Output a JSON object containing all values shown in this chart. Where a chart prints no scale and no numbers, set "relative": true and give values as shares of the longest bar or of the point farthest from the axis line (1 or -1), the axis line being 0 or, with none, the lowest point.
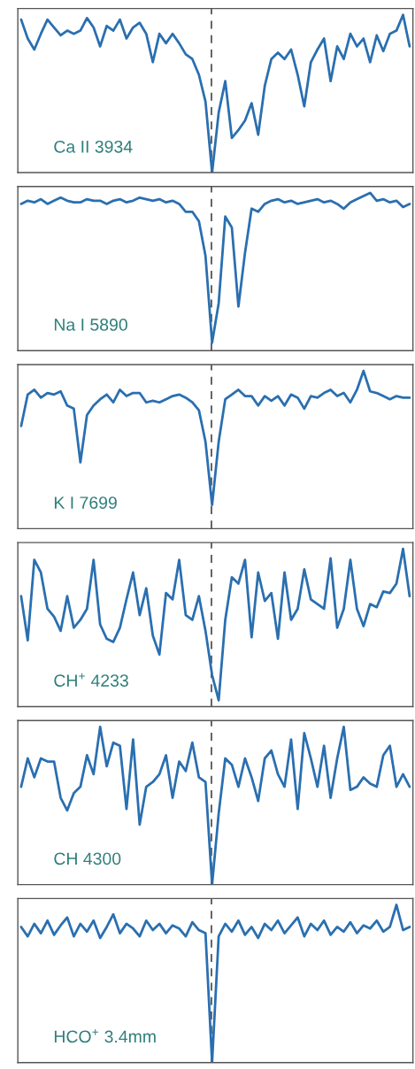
{
  "chart_data": [
    {
      "type": "line",
      "relative": true,
      "categories": [
        null,
        null,
        null,
        null,
        null,
        null,
        null,
        null,
        null,
        null,
        null,
        null,
        null,
        null,
        null,
        null,
        null,
        null,
        null,
        null,
        null,
        null,
        null,
        null,
        null,
        null,
        null,
        null,
        null,
        null,
        null,
        null,
        null,
        null,
        null,
        null,
        null,
        null,
        null,
        null,
        null,
        null,
        null,
        null,
        null,
        null,
        null,
        null,
        null,
        null,
        null,
        null,
        null,
        null,
        null,
        null,
        null,
        null,
        null,
        null
      ],
      "series": [
        {
          "color": "#2a6fb0",
          "values": [
            0.97,
            0.85,
            0.78,
            0.88,
            0.97,
            0.92,
            0.87,
            0.9,
            0.88,
            0.9,
            0.98,
            0.92,
            0.8,
            0.93,
            0.9,
            0.97,
            0.85,
            0.92,
            0.95,
            0.88,
            0.7,
            0.88,
            0.82,
            0.88,
            0.82,
            0.75,
            0.72,
            0.62,
            0.45,
            0.0,
            0.38,
            0.58,
            0.22,
            0.27,
            0.33,
            0.44,
            0.24,
            0.55,
            0.72,
            0.76,
            0.72,
            0.78,
            0.62,
            0.42,
            0.7,
            0.78,
            0.85,
            0.58,
            0.8,
            0.72,
            0.88,
            0.8,
            0.85,
            0.7,
            0.87,
            0.77,
            0.88,
            0.9,
            1.0,
            0.8
          ]
        }
      ],
      "annotations": [
        "Ca II 3934"
      ]
    },
    {
      "type": "line",
      "relative": true,
      "categories": [
        null,
        null,
        null,
        null,
        null,
        null,
        null,
        null,
        null,
        null,
        null,
        null,
        null,
        null,
        null,
        null,
        null,
        null,
        null,
        null,
        null,
        null,
        null,
        null,
        null,
        null,
        null,
        null,
        null,
        null,
        null,
        null,
        null,
        null,
        null,
        null,
        null,
        null,
        null,
        null,
        null,
        null,
        null,
        null,
        null,
        null,
        null,
        null,
        null,
        null,
        null,
        null,
        null,
        null,
        null,
        null,
        null,
        null,
        null,
        null
      ],
      "series": [
        {
          "color": "#2a6fb0",
          "values": [
            0.93,
            0.95,
            0.94,
            0.96,
            0.93,
            0.95,
            0.97,
            0.95,
            0.94,
            0.94,
            0.96,
            0.95,
            0.95,
            0.93,
            0.95,
            0.96,
            0.94,
            0.95,
            0.97,
            0.96,
            0.95,
            0.96,
            0.94,
            0.95,
            0.93,
            0.88,
            0.88,
            0.82,
            0.6,
            0.05,
            0.3,
            0.85,
            0.78,
            0.28,
            0.62,
            0.9,
            0.88,
            0.93,
            0.95,
            0.96,
            0.94,
            0.95,
            0.93,
            0.94,
            0.95,
            0.96,
            0.94,
            0.95,
            0.93,
            0.9,
            0.94,
            0.96,
            0.98,
            1.0,
            0.95,
            0.96,
            0.94,
            0.95,
            0.91,
            0.93
          ]
        }
      ],
      "annotations": [
        "Na I 5890"
      ]
    },
    {
      "type": "line",
      "relative": true,
      "categories": [
        null,
        null,
        null,
        null,
        null,
        null,
        null,
        null,
        null,
        null,
        null,
        null,
        null,
        null,
        null,
        null,
        null,
        null,
        null,
        null,
        null,
        null,
        null,
        null,
        null,
        null,
        null,
        null,
        null,
        null,
        null,
        null,
        null,
        null,
        null,
        null,
        null,
        null,
        null,
        null,
        null,
        null,
        null,
        null,
        null,
        null,
        null,
        null,
        null,
        null,
        null,
        null,
        null,
        null,
        null,
        null,
        null,
        null,
        null,
        null
      ],
      "series": [
        {
          "color": "#2a6fb0",
          "values": [
            0.65,
            0.85,
            0.88,
            0.83,
            0.86,
            0.85,
            0.87,
            0.78,
            0.76,
            0.42,
            0.72,
            0.78,
            0.82,
            0.85,
            0.8,
            0.88,
            0.84,
            0.86,
            0.86,
            0.8,
            0.81,
            0.8,
            0.82,
            0.84,
            0.85,
            0.83,
            0.8,
            0.75,
            0.55,
            0.15,
            0.55,
            0.82,
            0.85,
            0.88,
            0.84,
            0.84,
            0.78,
            0.84,
            0.81,
            0.84,
            0.78,
            0.85,
            0.83,
            0.76,
            0.84,
            0.83,
            0.86,
            0.88,
            0.84,
            0.86,
            0.8,
            0.88,
            1.0,
            0.87,
            0.86,
            0.84,
            0.82,
            0.84,
            0.83,
            0.83
          ]
        }
      ],
      "annotations": [
        "K I 7699"
      ]
    },
    {
      "type": "line",
      "relative": true,
      "categories": [
        null,
        null,
        null,
        null,
        null,
        null,
        null,
        null,
        null,
        null,
        null,
        null,
        null,
        null,
        null,
        null,
        null,
        null,
        null,
        null,
        null,
        null,
        null,
        null,
        null,
        null,
        null,
        null,
        null,
        null,
        null,
        null,
        null,
        null,
        null,
        null,
        null,
        null,
        null,
        null,
        null,
        null,
        null,
        null,
        null,
        null,
        null,
        null,
        null,
        null,
        null,
        null,
        null,
        null,
        null,
        null,
        null,
        null,
        null,
        null
      ],
      "series": [
        {
          "color": "#2a6fb0",
          "values": [
            0.7,
            0.42,
            0.93,
            0.85,
            0.62,
            0.57,
            0.48,
            0.7,
            0.5,
            0.55,
            0.62,
            0.93,
            0.52,
            0.43,
            0.41,
            0.5,
            0.68,
            0.85,
            0.58,
            0.75,
            0.45,
            0.33,
            0.72,
            0.68,
            0.93,
            0.58,
            0.55,
            0.7,
            0.48,
            0.2,
            0.04,
            0.55,
            0.82,
            0.78,
            0.93,
            0.44,
            0.85,
            0.67,
            0.72,
            0.43,
            0.85,
            0.55,
            0.62,
            0.87,
            0.68,
            0.65,
            0.62,
            0.94,
            0.5,
            0.62,
            0.93,
            0.62,
            0.51,
            0.65,
            0.63,
            0.73,
            0.72,
            0.78,
            1.0,
            0.7
          ]
        }
      ],
      "annotations": [
        "CH$^{+}$ 4233"
      ]
    },
    {
      "type": "line",
      "relative": true,
      "categories": [
        null,
        null,
        null,
        null,
        null,
        null,
        null,
        null,
        null,
        null,
        null,
        null,
        null,
        null,
        null,
        null,
        null,
        null,
        null,
        null,
        null,
        null,
        null,
        null,
        null,
        null,
        null,
        null,
        null,
        null,
        null,
        null,
        null,
        null,
        null,
        null,
        null,
        null,
        null,
        null,
        null,
        null,
        null,
        null,
        null,
        null,
        null,
        null,
        null,
        null,
        null,
        null,
        null,
        null,
        null,
        null,
        null,
        null,
        null,
        null
      ],
      "series": [
        {
          "color": "#2a6fb0",
          "values": [
            0.62,
            0.8,
            0.68,
            0.8,
            0.78,
            0.78,
            0.55,
            0.47,
            0.58,
            0.62,
            0.82,
            0.7,
            1.0,
            0.75,
            0.9,
            0.88,
            0.48,
            0.92,
            0.38,
            0.62,
            0.65,
            0.7,
            0.82,
            0.55,
            0.78,
            0.72,
            0.9,
            0.68,
            0.65,
            0.0,
            0.45,
            0.8,
            0.76,
            0.62,
            0.8,
            0.68,
            0.53,
            0.8,
            0.85,
            0.7,
            0.62,
            0.92,
            0.48,
            0.96,
            0.8,
            0.62,
            0.88,
            0.55,
            0.8,
            1.0,
            0.6,
            0.62,
            0.68,
            0.64,
            0.62,
            0.82,
            0.88,
            0.62,
            0.7,
            0.62
          ]
        }
      ],
      "annotations": [
        "CH 4300"
      ]
    },
    {
      "type": "line",
      "relative": true,
      "categories": [
        null,
        null,
        null,
        null,
        null,
        null,
        null,
        null,
        null,
        null,
        null,
        null,
        null,
        null,
        null,
        null,
        null,
        null,
        null,
        null,
        null,
        null,
        null,
        null,
        null,
        null,
        null,
        null,
        null,
        null,
        null,
        null,
        null,
        null,
        null,
        null,
        null,
        null,
        null,
        null,
        null,
        null,
        null,
        null,
        null,
        null,
        null,
        null,
        null,
        null,
        null,
        null,
        null,
        null,
        null,
        null,
        null,
        null,
        null,
        null
      ],
      "series": [
        {
          "color": "#2a6fb0",
          "values": [
            0.86,
            0.8,
            0.88,
            0.82,
            0.9,
            0.81,
            0.87,
            0.92,
            0.8,
            0.88,
            0.83,
            0.9,
            0.79,
            0.86,
            0.94,
            0.82,
            0.88,
            0.85,
            0.8,
            0.9,
            0.84,
            0.88,
            0.82,
            0.87,
            0.85,
            0.8,
            0.89,
            0.84,
            0.82,
            0.0,
            0.8,
            0.88,
            0.83,
            0.9,
            0.81,
            0.86,
            0.79,
            0.88,
            0.84,
            0.9,
            0.82,
            0.87,
            0.92,
            0.8,
            0.88,
            0.84,
            0.9,
            0.81,
            0.86,
            0.83,
            0.89,
            0.82,
            0.87,
            0.85,
            0.9,
            0.83,
            0.86,
            1.0,
            0.84,
            0.86
          ]
        }
      ],
      "annotations": [
        "HCO$^{+}$ 3.4mm"
      ]
    }
  ]
}
